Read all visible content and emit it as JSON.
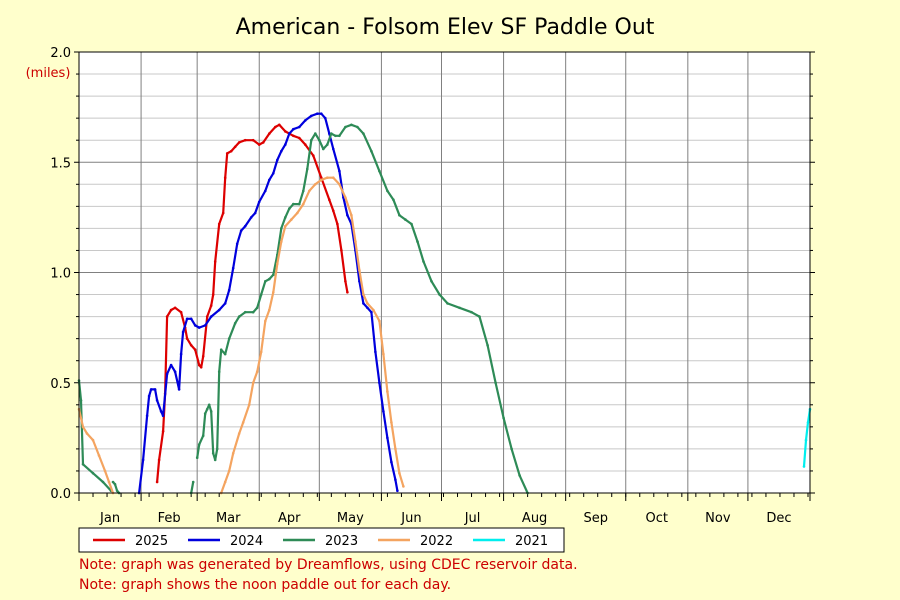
{
  "colors": {
    "background": "#ffffcc",
    "plot_background": "#ffffff",
    "note_text": "#cc0000",
    "unit_text": "#cc0000"
  },
  "notes": [
    "Note: graph was generated by Dreamflows, using CDEC reservoir data.",
    "Note: graph shows the noon paddle out for each day."
  ],
  "chart_data": {
    "type": "line",
    "title": "American - Folsom Elev SF Paddle Out",
    "xlabel": "",
    "ylabel": "(miles)",
    "ylim": [
      0,
      2.0
    ],
    "xlim": [
      0,
      365
    ],
    "grid": true,
    "legend_position": "bottom",
    "y_ticks": [
      {
        "value": 0,
        "label": "0.0"
      },
      {
        "value": 0.5,
        "label": "0.5"
      },
      {
        "value": 1.0,
        "label": "1.0"
      },
      {
        "value": 1.5,
        "label": "1.5"
      },
      {
        "value": 2.0,
        "label": "2.0"
      }
    ],
    "months": [
      "Jan",
      "Feb",
      "Mar",
      "Apr",
      "May",
      "Jun",
      "Jul",
      "Aug",
      "Sep",
      "Oct",
      "Nov",
      "Dec"
    ],
    "month_starts": [
      0,
      31,
      59,
      90,
      120,
      151,
      181,
      212,
      243,
      273,
      304,
      334,
      365
    ],
    "series": [
      {
        "name": "2025",
        "color": "#dd0000",
        "segments": [
          [
            [
              39,
              0.05
            ],
            [
              40,
              0.15
            ],
            [
              42,
              0.28
            ],
            [
              43,
              0.45
            ],
            [
              44,
              0.8
            ],
            [
              46,
              0.83
            ],
            [
              48,
              0.84
            ],
            [
              51,
              0.82
            ],
            [
              53,
              0.75
            ],
            [
              54,
              0.7
            ],
            [
              56,
              0.67
            ],
            [
              58,
              0.65
            ],
            [
              60,
              0.58
            ],
            [
              61,
              0.57
            ],
            [
              62,
              0.62
            ],
            [
              64,
              0.8
            ],
            [
              66,
              0.85
            ],
            [
              67,
              0.9
            ],
            [
              68,
              1.05
            ],
            [
              70,
              1.22
            ],
            [
              72,
              1.27
            ],
            [
              73,
              1.43
            ],
            [
              74,
              1.54
            ],
            [
              76,
              1.55
            ],
            [
              78,
              1.57
            ],
            [
              80,
              1.59
            ],
            [
              83,
              1.6
            ],
            [
              87,
              1.6
            ],
            [
              90,
              1.58
            ],
            [
              92,
              1.59
            ],
            [
              95,
              1.63
            ],
            [
              98,
              1.66
            ],
            [
              100,
              1.67
            ],
            [
              103,
              1.64
            ],
            [
              107,
              1.62
            ],
            [
              110,
              1.61
            ],
            [
              113,
              1.58
            ],
            [
              117,
              1.53
            ],
            [
              121,
              1.43
            ],
            [
              125,
              1.33
            ],
            [
              127,
              1.28
            ],
            [
              129,
              1.22
            ],
            [
              131,
              1.1
            ],
            [
              133,
              0.96
            ],
            [
              134,
              0.91
            ]
          ]
        ]
      },
      {
        "name": "2024",
        "color": "#0000dd",
        "segments": [
          [
            [
              30,
              0.0
            ],
            [
              32,
              0.15
            ],
            [
              34,
              0.35
            ],
            [
              35,
              0.44
            ],
            [
              36,
              0.47
            ],
            [
              38,
              0.47
            ],
            [
              39,
              0.42
            ],
            [
              41,
              0.37
            ],
            [
              42,
              0.35
            ],
            [
              44,
              0.54
            ],
            [
              46,
              0.58
            ],
            [
              48,
              0.55
            ],
            [
              50,
              0.47
            ],
            [
              51,
              0.63
            ],
            [
              52,
              0.73
            ],
            [
              54,
              0.79
            ],
            [
              56,
              0.79
            ],
            [
              58,
              0.76
            ],
            [
              60,
              0.75
            ],
            [
              63,
              0.76
            ],
            [
              66,
              0.8
            ],
            [
              70,
              0.83
            ],
            [
              73,
              0.86
            ],
            [
              75,
              0.92
            ],
            [
              77,
              1.02
            ],
            [
              79,
              1.13
            ],
            [
              81,
              1.19
            ],
            [
              83,
              1.21
            ],
            [
              86,
              1.25
            ],
            [
              88,
              1.27
            ],
            [
              90,
              1.32
            ],
            [
              93,
              1.37
            ],
            [
              95,
              1.42
            ],
            [
              97,
              1.45
            ],
            [
              99,
              1.51
            ],
            [
              101,
              1.55
            ],
            [
              103,
              1.58
            ],
            [
              105,
              1.63
            ],
            [
              107,
              1.65
            ],
            [
              110,
              1.66
            ],
            [
              113,
              1.69
            ],
            [
              116,
              1.71
            ],
            [
              119,
              1.72
            ],
            [
              121,
              1.72
            ],
            [
              123,
              1.7
            ],
            [
              125,
              1.63
            ],
            [
              127,
              1.56
            ],
            [
              130,
              1.46
            ],
            [
              132,
              1.34
            ],
            [
              134,
              1.26
            ],
            [
              136,
              1.22
            ],
            [
              138,
              1.1
            ],
            [
              140,
              0.96
            ],
            [
              142,
              0.86
            ],
            [
              144,
              0.84
            ],
            [
              146,
              0.82
            ],
            [
              148,
              0.64
            ],
            [
              150,
              0.5
            ],
            [
              152,
              0.37
            ],
            [
              154,
              0.25
            ],
            [
              156,
              0.14
            ],
            [
              158,
              0.06
            ],
            [
              159,
              0.01
            ]
          ]
        ]
      },
      {
        "name": "2023",
        "color": "#2e8b57",
        "segments": [
          [
            [
              0,
              0.51
            ],
            [
              1,
              0.42
            ],
            [
              2,
              0.13
            ],
            [
              7,
              0.09
            ],
            [
              12,
              0.05
            ],
            [
              16,
              0.01
            ]
          ],
          [
            [
              17,
              0.05
            ],
            [
              18,
              0.04
            ],
            [
              19,
              0.01
            ],
            [
              20,
              0.0
            ]
          ],
          [
            [
              56,
              0.0
            ],
            [
              57,
              0.05
            ]
          ],
          [
            [
              59,
              0.16
            ],
            [
              60,
              0.22
            ],
            [
              62,
              0.26
            ],
            [
              63,
              0.36
            ],
            [
              64,
              0.38
            ],
            [
              65,
              0.4
            ],
            [
              66,
              0.37
            ],
            [
              67,
              0.18
            ],
            [
              68,
              0.15
            ],
            [
              69,
              0.2
            ],
            [
              70,
              0.55
            ],
            [
              71,
              0.65
            ],
            [
              73,
              0.63
            ],
            [
              75,
              0.7
            ],
            [
              78,
              0.77
            ],
            [
              80,
              0.8
            ],
            [
              83,
              0.82
            ],
            [
              87,
              0.82
            ],
            [
              89,
              0.84
            ],
            [
              91,
              0.9
            ],
            [
              93,
              0.96
            ],
            [
              95,
              0.97
            ],
            [
              97,
              0.99
            ],
            [
              99,
              1.08
            ],
            [
              101,
              1.2
            ],
            [
              103,
              1.25
            ],
            [
              105,
              1.29
            ],
            [
              107,
              1.31
            ],
            [
              110,
              1.31
            ],
            [
              112,
              1.37
            ],
            [
              114,
              1.47
            ],
            [
              116,
              1.6
            ],
            [
              118,
              1.63
            ],
            [
              120,
              1.6
            ],
            [
              122,
              1.56
            ],
            [
              124,
              1.58
            ],
            [
              126,
              1.63
            ],
            [
              128,
              1.62
            ],
            [
              130,
              1.62
            ],
            [
              133,
              1.66
            ],
            [
              136,
              1.67
            ],
            [
              139,
              1.66
            ],
            [
              142,
              1.63
            ],
            [
              146,
              1.55
            ],
            [
              150,
              1.46
            ],
            [
              154,
              1.37
            ],
            [
              157,
              1.33
            ],
            [
              160,
              1.26
            ],
            [
              163,
              1.24
            ],
            [
              166,
              1.22
            ],
            [
              169,
              1.14
            ],
            [
              172,
              1.05
            ],
            [
              176,
              0.96
            ],
            [
              180,
              0.9
            ],
            [
              184,
              0.86
            ],
            [
              190,
              0.84
            ],
            [
              196,
              0.82
            ],
            [
              200,
              0.8
            ],
            [
              204,
              0.67
            ],
            [
              208,
              0.5
            ],
            [
              212,
              0.34
            ],
            [
              216,
              0.2
            ],
            [
              220,
              0.08
            ],
            [
              224,
              0.0
            ]
          ]
        ]
      },
      {
        "name": "2022",
        "color": "#f4a460",
        "segments": [
          [
            [
              0,
              0.38
            ],
            [
              2,
              0.3
            ],
            [
              4,
              0.27
            ],
            [
              7,
              0.24
            ],
            [
              10,
              0.17
            ],
            [
              13,
              0.1
            ],
            [
              15,
              0.05
            ],
            [
              17,
              0.0
            ]
          ],
          [
            [
              71,
              0.0
            ],
            [
              73,
              0.05
            ],
            [
              75,
              0.1
            ],
            [
              77,
              0.18
            ],
            [
              80,
              0.27
            ],
            [
              82,
              0.32
            ],
            [
              85,
              0.4
            ],
            [
              87,
              0.5
            ],
            [
              89,
              0.55
            ],
            [
              91,
              0.64
            ],
            [
              93,
              0.78
            ],
            [
              95,
              0.83
            ],
            [
              97,
              0.91
            ],
            [
              99,
              1.04
            ],
            [
              101,
              1.14
            ],
            [
              103,
              1.21
            ],
            [
              106,
              1.24
            ],
            [
              109,
              1.27
            ],
            [
              112,
              1.31
            ],
            [
              115,
              1.37
            ],
            [
              118,
              1.4
            ],
            [
              121,
              1.42
            ],
            [
              124,
              1.43
            ],
            [
              127,
              1.43
            ],
            [
              130,
              1.4
            ],
            [
              133,
              1.34
            ],
            [
              136,
              1.26
            ],
            [
              138,
              1.14
            ],
            [
              140,
              1.01
            ],
            [
              142,
              0.9
            ],
            [
              144,
              0.86
            ],
            [
              147,
              0.83
            ],
            [
              150,
              0.78
            ],
            [
              152,
              0.63
            ],
            [
              154,
              0.46
            ],
            [
              156,
              0.32
            ],
            [
              158,
              0.2
            ],
            [
              160,
              0.09
            ],
            [
              162,
              0.03
            ]
          ]
        ]
      },
      {
        "name": "2021",
        "color": "#00eeee",
        "segments": [
          [
            [
              362,
              0.12
            ],
            [
              363,
              0.24
            ],
            [
              364,
              0.32
            ],
            [
              365,
              0.38
            ]
          ]
        ]
      }
    ]
  }
}
